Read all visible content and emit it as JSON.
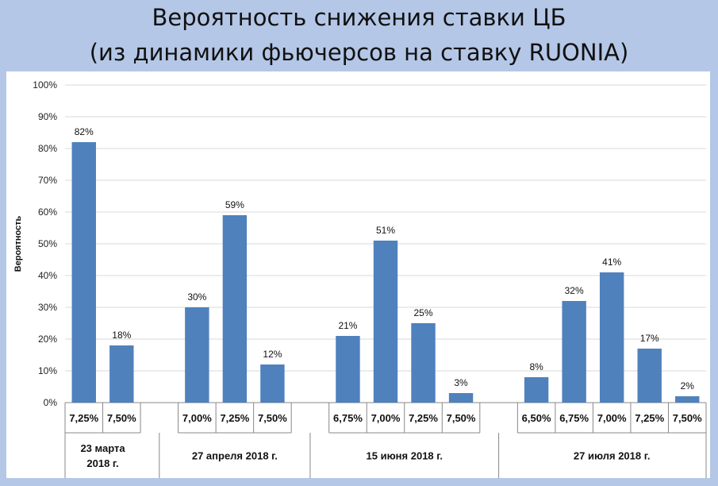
{
  "header": {
    "title_line1": "Вероятность снижения ставки ЦБ",
    "title_line2": "(из динамики фьючерсов на ставку RUONIA)"
  },
  "colors": {
    "background": "#b4c7e7",
    "bar": "#4f81bd",
    "grid": "#d9d9d9"
  },
  "chart_data": {
    "type": "bar",
    "ylabel": "Вероятность",
    "ylim": [
      0,
      100
    ],
    "yticks": [
      "0%",
      "10%",
      "20%",
      "30%",
      "40%",
      "50%",
      "60%",
      "70%",
      "80%",
      "90%",
      "100%"
    ],
    "grid": true,
    "groups": [
      {
        "label_lines": [
          "23 марта",
          "2018 г."
        ],
        "categories": [
          "7,25%",
          "7,50%"
        ],
        "values": [
          82,
          18
        ],
        "data_labels": [
          "82%",
          "18%"
        ]
      },
      {
        "label_lines": [
          "27 апреля 2018 г."
        ],
        "categories": [
          "7,00%",
          "7,25%",
          "7,50%"
        ],
        "values": [
          30,
          59,
          12
        ],
        "data_labels": [
          "30%",
          "59%",
          "12%"
        ]
      },
      {
        "label_lines": [
          "15 июня 2018 г."
        ],
        "categories": [
          "6,75%",
          "7,00%",
          "7,25%",
          "7,50%"
        ],
        "values": [
          21,
          51,
          25,
          3
        ],
        "data_labels": [
          "21%",
          "51%",
          "25%",
          "3%"
        ]
      },
      {
        "label_lines": [
          "27 июля 2018 г."
        ],
        "categories": [
          "6,50%",
          "6,75%",
          "7,00%",
          "7,25%",
          "7,50%"
        ],
        "values": [
          8,
          32,
          41,
          17,
          2
        ],
        "data_labels": [
          "8%",
          "32%",
          "41%",
          "17%",
          "2%"
        ]
      }
    ]
  }
}
